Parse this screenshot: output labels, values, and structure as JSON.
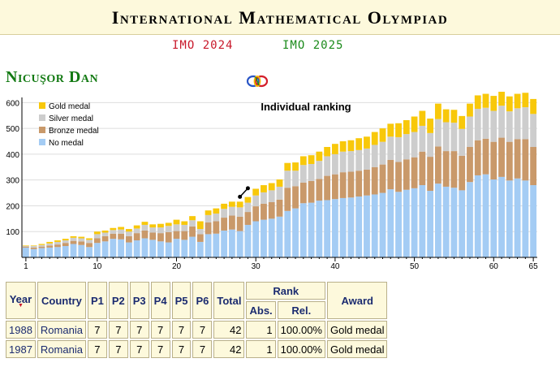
{
  "site": {
    "title_initials": [
      "I",
      "M",
      "O"
    ],
    "title_rest": [
      "nternational",
      "athematical",
      "lympiad"
    ],
    "prev_year": "IMO 2024",
    "next_year": "IMO 2025"
  },
  "participant": {
    "name": "Nicuşor Dan"
  },
  "chart_data": {
    "type": "bar",
    "stacked": true,
    "title": "Individual ranking",
    "ylim": [
      0,
      620
    ],
    "yticks": [
      100,
      200,
      300,
      400,
      500,
      600
    ],
    "xticks": [
      1,
      10,
      20,
      30,
      40,
      50,
      60,
      65
    ],
    "legend_position": "top-left",
    "categories": [
      1,
      2,
      3,
      4,
      5,
      6,
      7,
      8,
      9,
      10,
      11,
      12,
      13,
      14,
      15,
      16,
      17,
      18,
      19,
      20,
      21,
      22,
      23,
      24,
      25,
      26,
      27,
      28,
      29,
      30,
      31,
      32,
      33,
      34,
      35,
      36,
      37,
      38,
      39,
      40,
      41,
      42,
      43,
      44,
      45,
      46,
      47,
      48,
      49,
      50,
      51,
      52,
      53,
      54,
      55,
      56,
      57,
      58,
      59,
      60,
      61,
      62,
      63,
      64,
      65
    ],
    "series": [
      {
        "name": "No medal",
        "color": "#a4ccf4",
        "values": [
          38,
          32,
          36,
          38,
          40,
          44,
          52,
          48,
          40,
          56,
          62,
          72,
          70,
          58,
          66,
          74,
          68,
          62,
          58,
          72,
          68,
          80,
          60,
          90,
          92,
          104,
          108,
          102,
          126,
          140,
          146,
          150,
          158,
          180,
          190,
          210,
          212,
          220,
          222,
          226,
          230,
          232,
          236,
          240,
          244,
          250,
          264,
          254,
          262,
          268,
          280,
          258,
          286,
          274,
          270,
          260,
          292,
          318,
          322,
          302,
          312,
          298,
          306,
          298,
          280
        ]
      },
      {
        "name": "Bronze medal",
        "color": "#c9996a",
        "values": [
          4,
          6,
          6,
          8,
          10,
          12,
          12,
          14,
          16,
          18,
          20,
          20,
          22,
          24,
          28,
          30,
          28,
          32,
          40,
          30,
          34,
          40,
          30,
          46,
          48,
          50,
          54,
          56,
          50,
          58,
          62,
          64,
          66,
          90,
          86,
          80,
          84,
          84,
          94,
          96,
          100,
          100,
          100,
          100,
          106,
          110,
          114,
          116,
          118,
          120,
          130,
          132,
          144,
          138,
          142,
          134,
          136,
          136,
          138,
          146,
          152,
          150,
          152,
          160,
          148
        ]
      },
      {
        "name": "Silver medal",
        "color": "#cdcdcd",
        "values": [
          2,
          6,
          6,
          8,
          10,
          10,
          12,
          12,
          12,
          16,
          14,
          14,
          16,
          18,
          18,
          22,
          20,
          22,
          24,
          26,
          24,
          24,
          20,
          28,
          30,
          34,
          34,
          36,
          36,
          42,
          44,
          46,
          50,
          66,
          60,
          68,
          66,
          70,
          76,
          78,
          80,
          80,
          80,
          82,
          86,
          88,
          90,
          96,
          98,
          98,
          100,
          92,
          106,
          112,
          110,
          104,
          118,
          122,
          120,
          120,
          124,
          118,
          120,
          124,
          128
        ]
      },
      {
        "name": "Gold medal",
        "color": "#f8c80a",
        "values": [
          2,
          2,
          4,
          6,
          6,
          6,
          6,
          6,
          6,
          10,
          8,
          8,
          10,
          10,
          12,
          12,
          12,
          14,
          12,
          18,
          14,
          16,
          30,
          18,
          20,
          20,
          20,
          22,
          22,
          26,
          28,
          28,
          28,
          30,
          32,
          34,
          34,
          36,
          36,
          40,
          40,
          42,
          46,
          46,
          50,
          52,
          50,
          54,
          54,
          60,
          58,
          56,
          60,
          50,
          50,
          50,
          50,
          52,
          54,
          58,
          54,
          58,
          56,
          56,
          58
        ]
      }
    ],
    "highlights": [
      {
        "x": 28,
        "y": 235
      },
      {
        "x": 29,
        "y": 268
      }
    ]
  },
  "table": {
    "headers": {
      "year": "Year",
      "country": "Country",
      "problems": [
        "P1",
        "P2",
        "P3",
        "P4",
        "P5",
        "P6"
      ],
      "total": "Total",
      "rank": "Rank",
      "abs": "Abs.",
      "rel": "Rel.",
      "award": "Award"
    },
    "rows": [
      {
        "year": "1988",
        "country": "Romania",
        "scores": [
          "7",
          "7",
          "7",
          "7",
          "7",
          "7"
        ],
        "total": "42",
        "abs": "1",
        "rel": "100.00%",
        "award": "Gold medal"
      },
      {
        "year": "1987",
        "country": "Romania",
        "scores": [
          "7",
          "7",
          "7",
          "7",
          "7",
          "7"
        ],
        "total": "42",
        "abs": "1",
        "rel": "100.00%",
        "award": "Gold medal"
      }
    ]
  }
}
